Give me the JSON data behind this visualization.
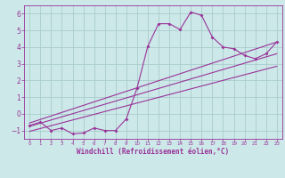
{
  "background_color": "#cce8e8",
  "grid_color": "#aacccc",
  "line_color": "#993399",
  "xlim": [
    -0.5,
    23.5
  ],
  "ylim": [
    -1.5,
    6.5
  ],
  "xticks": [
    0,
    1,
    2,
    3,
    4,
    5,
    6,
    7,
    8,
    9,
    10,
    11,
    12,
    13,
    14,
    15,
    16,
    17,
    18,
    19,
    20,
    21,
    22,
    23
  ],
  "yticks": [
    -1,
    0,
    1,
    2,
    3,
    4,
    5,
    6
  ],
  "xlabel": "Windchill (Refroidissement éolien,°C)",
  "scatter_x": [
    0,
    1,
    2,
    3,
    4,
    5,
    6,
    7,
    8,
    9,
    10,
    11,
    12,
    13,
    14,
    15,
    16,
    17,
    18,
    19,
    20,
    21,
    22,
    23
  ],
  "scatter_y": [
    -0.7,
    -0.5,
    -1.0,
    -0.85,
    -1.2,
    -1.15,
    -0.85,
    -1.0,
    -1.0,
    -0.3,
    1.55,
    4.05,
    5.4,
    5.4,
    5.05,
    6.1,
    5.9,
    4.6,
    4.0,
    3.9,
    3.5,
    3.3,
    3.6,
    4.3
  ],
  "line1_x": [
    0,
    23
  ],
  "line1_y": [
    -0.55,
    4.3
  ],
  "line2_x": [
    0,
    23
  ],
  "line2_y": [
    -0.75,
    3.6
  ],
  "line3_x": [
    0,
    23
  ],
  "line3_y": [
    -1.05,
    2.85
  ]
}
